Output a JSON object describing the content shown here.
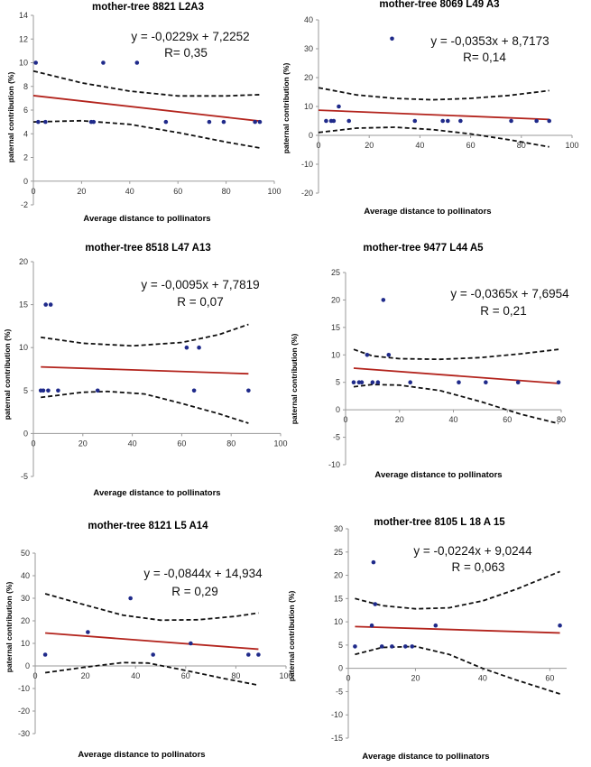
{
  "chart_data": [
    {
      "type": "scatter",
      "title": "mother-tree 8821  L2A3",
      "xlabel": "Average distance  to pollinators",
      "ylabel": "paternal contribution (%)",
      "equation": "y = -0,0229x + 7,2252",
      "r_label": "R= 0,35",
      "xlim": [
        0,
        100
      ],
      "ylim": [
        -2,
        14
      ],
      "xticks": [
        0,
        20,
        40,
        60,
        80,
        100
      ],
      "yticks": [
        -2,
        0,
        2,
        4,
        6,
        8,
        10,
        12,
        14
      ],
      "points": [
        [
          1,
          10
        ],
        [
          2,
          5
        ],
        [
          5,
          5
        ],
        [
          24,
          5
        ],
        [
          25,
          5
        ],
        [
          29,
          10
        ],
        [
          43,
          10
        ],
        [
          55,
          5
        ],
        [
          73,
          5
        ],
        [
          79,
          5
        ],
        [
          92,
          5
        ],
        [
          94,
          5
        ]
      ],
      "trend": {
        "slope": -0.0229,
        "intercept": 7.2252,
        "x": [
          0,
          94
        ]
      },
      "ci_upper": [
        [
          0,
          9.3
        ],
        [
          20,
          8.3
        ],
        [
          40,
          7.6
        ],
        [
          60,
          7.2
        ],
        [
          80,
          7.2
        ],
        [
          94,
          7.3
        ]
      ],
      "ci_lower": [
        [
          0,
          5.0
        ],
        [
          20,
          5.1
        ],
        [
          40,
          4.8
        ],
        [
          60,
          4.1
        ],
        [
          80,
          3.3
        ],
        [
          94,
          2.8
        ]
      ]
    },
    {
      "type": "scatter",
      "title": "mother-tree 8069  L49  A3",
      "xlabel": "Average distance  to pollinators",
      "ylabel": "paternal contribution (%)",
      "equation": "y = -0,0353x + 8,7173",
      "r_label": "R= 0,14",
      "xlim": [
        0,
        100
      ],
      "ylim": [
        -20,
        40
      ],
      "xticks": [
        0,
        20,
        40,
        60,
        80,
        100
      ],
      "yticks": [
        -20,
        -10,
        0,
        10,
        20,
        30,
        40
      ],
      "points": [
        [
          3,
          5
        ],
        [
          5,
          5
        ],
        [
          6,
          5
        ],
        [
          8,
          10
        ],
        [
          12,
          5
        ],
        [
          29,
          33.5
        ],
        [
          38,
          5
        ],
        [
          49,
          5
        ],
        [
          51,
          5
        ],
        [
          56,
          5
        ],
        [
          76,
          5
        ],
        [
          86,
          5
        ],
        [
          91,
          5
        ]
      ],
      "trend": {
        "slope": -0.0353,
        "intercept": 8.7173,
        "x": [
          0,
          91
        ]
      },
      "ci_upper": [
        [
          0,
          16.5
        ],
        [
          15,
          14
        ],
        [
          30,
          12.8
        ],
        [
          45,
          12.3
        ],
        [
          60,
          12.8
        ],
        [
          75,
          13.8
        ],
        [
          91,
          15.5
        ]
      ],
      "ci_lower": [
        [
          0,
          1
        ],
        [
          15,
          2.5
        ],
        [
          30,
          2.8
        ],
        [
          45,
          2
        ],
        [
          60,
          0.5
        ],
        [
          75,
          -1.5
        ],
        [
          91,
          -4
        ]
      ]
    },
    {
      "type": "scatter",
      "title": "mother-tree 8518  L47  A13",
      "xlabel": "Average distance  to pollinators",
      "ylabel": "paternal contribution (%)",
      "equation": "y = -0,0095x + 7,7819",
      "r_label": "R = 0,07",
      "xlim": [
        0,
        100
      ],
      "ylim": [
        -5,
        20
      ],
      "xticks": [
        0,
        20,
        40,
        60,
        80,
        100
      ],
      "yticks": [
        -5,
        0,
        5,
        10,
        15,
        20
      ],
      "points": [
        [
          3,
          5
        ],
        [
          4,
          5
        ],
        [
          5,
          15
        ],
        [
          6,
          5
        ],
        [
          7,
          15
        ],
        [
          10,
          5
        ],
        [
          26,
          5
        ],
        [
          62,
          10
        ],
        [
          65,
          5
        ],
        [
          67,
          10
        ],
        [
          87,
          5
        ]
      ],
      "trend": {
        "slope": -0.0095,
        "intercept": 7.7819,
        "x": [
          3,
          87
        ]
      },
      "ci_upper": [
        [
          3,
          11.2
        ],
        [
          20,
          10.5
        ],
        [
          40,
          10.2
        ],
        [
          60,
          10.6
        ],
        [
          75,
          11.5
        ],
        [
          87,
          12.7
        ]
      ],
      "ci_lower": [
        [
          3,
          4.2
        ],
        [
          20,
          4.8
        ],
        [
          30,
          4.9
        ],
        [
          45,
          4.6
        ],
        [
          60,
          3.5
        ],
        [
          75,
          2.3
        ],
        [
          87,
          1.2
        ]
      ]
    },
    {
      "type": "scatter",
      "title": "mother-tree 9477  L44  A5",
      "xlabel": "Average distance  to pollinators",
      "ylabel": "paternal contribution (%)",
      "equation": "y = -0,0365x + 7,6954",
      "r_label": "R = 0,21",
      "xlim": [
        0,
        80
      ],
      "ylim": [
        -10,
        25
      ],
      "xticks": [
        0,
        20,
        40,
        60,
        80
      ],
      "yticks": [
        -10,
        -5,
        0,
        5,
        10,
        15,
        20,
        25
      ],
      "points": [
        [
          3,
          5
        ],
        [
          5,
          5
        ],
        [
          6,
          5
        ],
        [
          8,
          10
        ],
        [
          10,
          5
        ],
        [
          12,
          5
        ],
        [
          14,
          20
        ],
        [
          16,
          10
        ],
        [
          24,
          5
        ],
        [
          42,
          5
        ],
        [
          52,
          5
        ],
        [
          64,
          5
        ],
        [
          79,
          5
        ]
      ],
      "trend": {
        "slope": -0.0365,
        "intercept": 7.6954,
        "x": [
          3,
          79
        ]
      },
      "ci_upper": [
        [
          3,
          11
        ],
        [
          10,
          9.8
        ],
        [
          20,
          9.3
        ],
        [
          35,
          9.2
        ],
        [
          50,
          9.5
        ],
        [
          65,
          10.2
        ],
        [
          79,
          11
        ]
      ],
      "ci_lower": [
        [
          3,
          4.2
        ],
        [
          10,
          4.6
        ],
        [
          20,
          4.5
        ],
        [
          35,
          3.5
        ],
        [
          50,
          1.5
        ],
        [
          65,
          -0.8
        ],
        [
          79,
          -2.5
        ]
      ]
    },
    {
      "type": "scatter",
      "title": "mother-tree 8121  L5  A14",
      "xlabel": "Average distance  to pollinators",
      "ylabel": "paternal contribution (%)",
      "equation": "y = -0,0844x + 14,934",
      "r_label": "R = 0,29",
      "xlim": [
        0,
        100
      ],
      "ylim": [
        -30,
        50
      ],
      "xticks": [
        0,
        20,
        40,
        60,
        80,
        100
      ],
      "yticks": [
        -30,
        -20,
        -10,
        0,
        10,
        20,
        30,
        40,
        50
      ],
      "points": [
        [
          4,
          5
        ],
        [
          21,
          15
        ],
        [
          38,
          30
        ],
        [
          47,
          5
        ],
        [
          62,
          10
        ],
        [
          85,
          5
        ],
        [
          89,
          5
        ]
      ],
      "trend": {
        "slope": -0.0844,
        "intercept": 14.934,
        "x": [
          4,
          89
        ]
      },
      "ci_upper": [
        [
          4,
          32
        ],
        [
          20,
          27
        ],
        [
          35,
          22.5
        ],
        [
          50,
          20.3
        ],
        [
          65,
          20.5
        ],
        [
          80,
          22
        ],
        [
          89,
          23.5
        ]
      ],
      "ci_lower": [
        [
          4,
          -3
        ],
        [
          20,
          -0.5
        ],
        [
          35,
          1.5
        ],
        [
          45,
          1.3
        ],
        [
          60,
          -2
        ],
        [
          75,
          -5.5
        ],
        [
          89,
          -8.5
        ]
      ]
    },
    {
      "type": "scatter",
      "title": "mother-tree 8105  L 18  A 15",
      "xlabel": "Average distance  to pollinators",
      "ylabel": "paternal contribution (%)",
      "equation": "y = -0,0224x + 9,0244",
      "r_label": "R = 0,063",
      "xlim": [
        0,
        65
      ],
      "ylim": [
        -15,
        30
      ],
      "xticks": [
        0,
        20,
        40,
        60
      ],
      "yticks": [
        -15,
        -10,
        -5,
        0,
        5,
        10,
        15,
        20,
        25,
        30
      ],
      "points": [
        [
          2,
          4.7
        ],
        [
          7,
          9.2
        ],
        [
          7.5,
          22.8
        ],
        [
          8,
          13.8
        ],
        [
          10,
          4.7
        ],
        [
          13,
          4.7
        ],
        [
          17,
          4.7
        ],
        [
          19,
          4.7
        ],
        [
          26,
          9.2
        ],
        [
          63,
          9.2
        ]
      ],
      "trend": {
        "slope": -0.0224,
        "intercept": 9.0244,
        "x": [
          2,
          63
        ]
      },
      "ci_upper": [
        [
          2,
          15
        ],
        [
          10,
          13.5
        ],
        [
          20,
          12.8
        ],
        [
          30,
          13
        ],
        [
          40,
          14.5
        ],
        [
          50,
          17
        ],
        [
          63,
          20.8
        ]
      ],
      "ci_lower": [
        [
          2,
          3
        ],
        [
          10,
          4.5
        ],
        [
          20,
          4.7
        ],
        [
          30,
          3
        ],
        [
          40,
          0
        ],
        [
          50,
          -2.5
        ],
        [
          63,
          -5.5
        ]
      ]
    }
  ]
}
